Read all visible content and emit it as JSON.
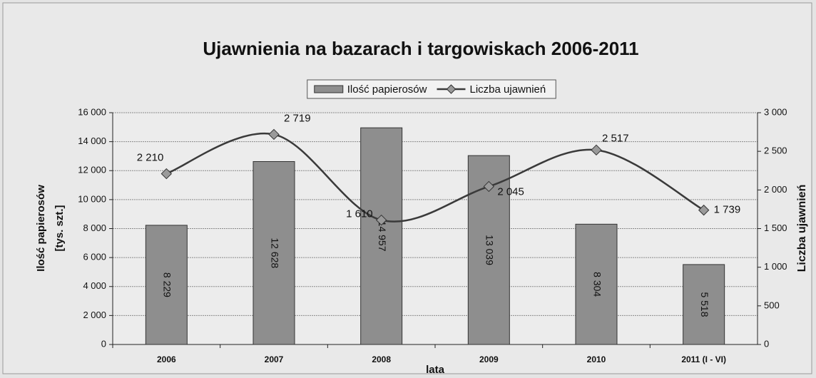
{
  "chart_data": {
    "type": "combo",
    "title": "Ujawnienia na bazarach i targowiskach 2006-2011",
    "xlabel": "lata",
    "ylabel": [
      "Ilość papierosów",
      "[tys. szt.]"
    ],
    "y2label": "Liczba ujawnień",
    "categories": [
      "2006",
      "2007",
      "2008",
      "2009",
      "2010",
      "2011 (I - VI)"
    ],
    "series": [
      {
        "name": "Ilość papierosów",
        "type": "bar",
        "color": "#8e8e8e",
        "values": [
          8229,
          12628,
          14957,
          13039,
          8304,
          5518
        ],
        "value_labels": [
          "8 229",
          "12 628",
          "14 957",
          "13 039",
          "8 304",
          "5 518"
        ]
      },
      {
        "name": "Liczba ujawnień",
        "type": "line",
        "axis": "y2",
        "color": "#3a3a3a",
        "values": [
          2210,
          2719,
          1610,
          2045,
          2517,
          1739
        ],
        "value_labels": [
          "2 210",
          "2 719",
          "1 610",
          "2 045",
          "2 517",
          "1 739"
        ]
      }
    ],
    "ylim": [
      0,
      16000
    ],
    "yticks": [
      0,
      {
        "value": 2000,
        "label": "2 000"
      },
      {
        "value": 4000,
        "label": "4 000"
      },
      {
        "value": 6000,
        "label": "6 000"
      },
      {
        "value": 8000,
        "label": "8 000"
      },
      {
        "value": 10000,
        "label": "10 000"
      },
      {
        "value": 12000,
        "label": "12 000"
      },
      {
        "value": 14000,
        "label": "14 000"
      },
      {
        "value": 16000,
        "label": "16 000"
      }
    ],
    "y2lim": [
      0,
      3000
    ],
    "y2ticks": [
      0,
      500,
      {
        "value": 1000,
        "label": "1 000"
      },
      {
        "value": 1500,
        "label": "1 500"
      },
      {
        "value": 2000,
        "label": "2 000"
      },
      {
        "value": 2500,
        "label": "2 500"
      },
      {
        "value": 3000,
        "label": "3 000"
      }
    ],
    "grid": true,
    "legend": "top"
  }
}
